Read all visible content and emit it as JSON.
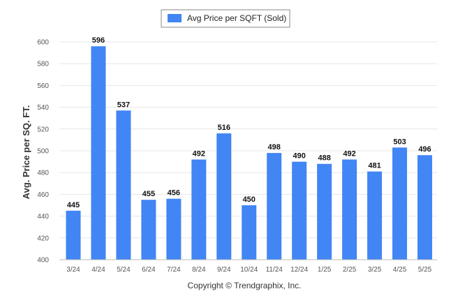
{
  "colors": {
    "bar": "#4285f4",
    "grid": "#e6e6e6",
    "axis": "#bbbbbb"
  },
  "chart_data": {
    "type": "bar",
    "categories": [
      "3/24",
      "4/24",
      "5/24",
      "6/24",
      "7/24",
      "8/24",
      "9/24",
      "10/24",
      "11/24",
      "12/24",
      "1/25",
      "2/25",
      "3/25",
      "4/25",
      "5/25"
    ],
    "series": [
      {
        "name": "Avg Price per SQFT (Sold)",
        "values": [
          445,
          596,
          537,
          455,
          456,
          492,
          516,
          450,
          498,
          490,
          488,
          492,
          481,
          503,
          496
        ]
      }
    ],
    "ylabel": "Avg. Price per SQ. FT.",
    "xlabel": "",
    "ylim": [
      400,
      600
    ],
    "yticks": [
      400,
      420,
      440,
      460,
      480,
      500,
      520,
      540,
      560,
      580,
      600
    ],
    "grid": true,
    "legend": "top-center",
    "data_labels": true
  },
  "footer": {
    "copyright": "Copyright © Trendgraphix, Inc."
  }
}
